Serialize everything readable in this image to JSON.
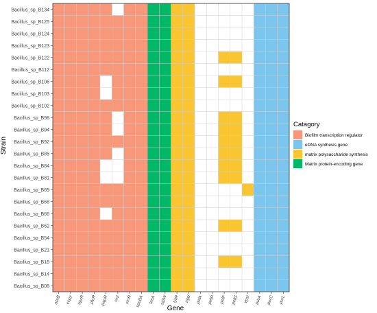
{
  "chart_data": {
    "type": "heatmap",
    "xlabel": "Gene",
    "ylabel": "Strain",
    "grid": true,
    "legend_placement": "right",
    "legend": {
      "title": "Catagory",
      "entries": [
        {
          "key": "biofilm",
          "label": "Biofilm transcription regulator",
          "color": "#F8987A"
        },
        {
          "key": "edna",
          "label": "eDNA synthesis gene",
          "color": "#7CC6EE"
        },
        {
          "key": "matrix_ps",
          "label": "matrix polysaccharide synthesis",
          "color": "#F9C531"
        },
        {
          "key": "matrix_protein",
          "label": "Matrix protein-encoding gene",
          "color": "#00B867"
        }
      ]
    },
    "genes": [
      {
        "name": "abrB",
        "category": "biofilm"
      },
      {
        "name": "ccpy",
        "category": "biofilm"
      },
      {
        "name": "hprR",
        "category": "biofilm"
      },
      {
        "name": "plcR",
        "category": "biofilm"
      },
      {
        "name": "papR",
        "category": "biofilm"
      },
      {
        "name": "sinI",
        "category": "biofilm"
      },
      {
        "name": "sinR",
        "category": "biofilm"
      },
      {
        "name": "spo0A",
        "category": "biofilm"
      },
      {
        "name": "tasA",
        "category": "matrix_protein"
      },
      {
        "name": "sipW",
        "category": "matrix_protein"
      },
      {
        "name": "lytR",
        "category": "matrix_ps"
      },
      {
        "name": "ugd",
        "category": "matrix_ps"
      },
      {
        "name": "pelA",
        "category": "matrix_ps"
      },
      {
        "name": "pelD",
        "category": "matrix_ps"
      },
      {
        "name": "pelF",
        "category": "matrix_ps"
      },
      {
        "name": "pelG",
        "category": "matrix_ps"
      },
      {
        "name": "vpsI",
        "category": "matrix_ps"
      },
      {
        "name": "purA",
        "category": "edna"
      },
      {
        "name": "purC",
        "category": "edna"
      },
      {
        "name": "purL",
        "category": "edna"
      }
    ],
    "strains": [
      {
        "name": "Bacillus_sp_B134",
        "present": [
          1,
          1,
          1,
          1,
          1,
          0,
          1,
          1,
          1,
          1,
          1,
          1,
          0,
          0,
          0,
          0,
          0,
          1,
          1,
          1
        ]
      },
      {
        "name": "Bacillus_sp_B125",
        "present": [
          1,
          1,
          1,
          1,
          1,
          1,
          1,
          1,
          1,
          1,
          1,
          1,
          0,
          0,
          0,
          0,
          0,
          1,
          1,
          1
        ]
      },
      {
        "name": "Bacillus_sp_B124",
        "present": [
          1,
          1,
          1,
          1,
          1,
          1,
          1,
          1,
          1,
          1,
          1,
          1,
          0,
          0,
          0,
          0,
          0,
          1,
          1,
          1
        ]
      },
      {
        "name": "Bacillus_sp_B123",
        "present": [
          1,
          1,
          1,
          1,
          1,
          1,
          1,
          1,
          1,
          1,
          1,
          1,
          0,
          0,
          0,
          0,
          0,
          1,
          1,
          1
        ]
      },
      {
        "name": "Bacillus_sp_B122",
        "present": [
          1,
          1,
          1,
          1,
          1,
          1,
          1,
          1,
          1,
          1,
          1,
          1,
          0,
          0,
          1,
          1,
          0,
          1,
          1,
          1
        ]
      },
      {
        "name": "Bacillus_sp_B112",
        "present": [
          1,
          1,
          1,
          1,
          1,
          1,
          1,
          1,
          1,
          1,
          1,
          1,
          0,
          0,
          0,
          0,
          0,
          1,
          1,
          1
        ]
      },
      {
        "name": "Bacillus_sp_B106",
        "present": [
          1,
          1,
          1,
          1,
          0,
          1,
          1,
          1,
          1,
          1,
          1,
          1,
          0,
          0,
          1,
          1,
          0,
          1,
          1,
          1
        ]
      },
      {
        "name": "Bacillus_sp_B103",
        "present": [
          1,
          1,
          1,
          1,
          0,
          1,
          1,
          1,
          1,
          1,
          1,
          1,
          0,
          0,
          0,
          0,
          0,
          1,
          1,
          1
        ]
      },
      {
        "name": "Bacillus_sp_B102",
        "present": [
          1,
          1,
          1,
          1,
          1,
          1,
          1,
          1,
          1,
          1,
          1,
          1,
          0,
          0,
          0,
          0,
          0,
          1,
          1,
          1
        ]
      },
      {
        "name": "Bacillus_sp_B98",
        "present": [
          1,
          1,
          1,
          1,
          1,
          0,
          1,
          1,
          1,
          1,
          1,
          1,
          0,
          0,
          1,
          1,
          0,
          1,
          1,
          1
        ]
      },
      {
        "name": "Bacillus_sp_B94",
        "present": [
          1,
          1,
          1,
          1,
          1,
          0,
          1,
          1,
          1,
          1,
          1,
          1,
          0,
          0,
          1,
          1,
          0,
          1,
          1,
          1
        ]
      },
      {
        "name": "Bacillus_sp_B92",
        "present": [
          1,
          1,
          1,
          1,
          1,
          1,
          1,
          1,
          1,
          1,
          1,
          1,
          0,
          0,
          1,
          1,
          0,
          1,
          1,
          1
        ]
      },
      {
        "name": "Bacillus_sp_B85",
        "present": [
          1,
          1,
          1,
          1,
          1,
          0,
          1,
          1,
          1,
          1,
          1,
          1,
          0,
          0,
          1,
          1,
          0,
          1,
          1,
          1
        ]
      },
      {
        "name": "Bacillus_sp_B84",
        "present": [
          1,
          1,
          1,
          1,
          0,
          0,
          1,
          1,
          1,
          1,
          1,
          1,
          0,
          0,
          1,
          1,
          0,
          1,
          1,
          1
        ]
      },
      {
        "name": "Bacillus_sp_B81",
        "present": [
          1,
          1,
          1,
          1,
          0,
          0,
          1,
          1,
          1,
          1,
          1,
          1,
          0,
          0,
          1,
          1,
          0,
          1,
          1,
          1
        ]
      },
      {
        "name": "Bacillus_sp_B69",
        "present": [
          1,
          1,
          1,
          1,
          1,
          1,
          1,
          1,
          1,
          1,
          1,
          1,
          0,
          0,
          0,
          0,
          1,
          1,
          1,
          1
        ]
      },
      {
        "name": "Bacillus_sp_B68",
        "present": [
          1,
          1,
          1,
          1,
          1,
          1,
          1,
          1,
          1,
          1,
          1,
          1,
          0,
          0,
          0,
          0,
          0,
          1,
          1,
          1
        ]
      },
      {
        "name": "Bacillus_sp_B66",
        "present": [
          1,
          1,
          1,
          1,
          0,
          1,
          1,
          1,
          1,
          1,
          1,
          1,
          0,
          0,
          0,
          0,
          0,
          1,
          1,
          1
        ]
      },
      {
        "name": "Bacillus_sp_B62",
        "present": [
          1,
          1,
          1,
          1,
          1,
          1,
          1,
          1,
          1,
          1,
          1,
          1,
          0,
          0,
          1,
          1,
          0,
          1,
          1,
          1
        ]
      },
      {
        "name": "Bacillus_sp_B54",
        "present": [
          1,
          1,
          1,
          1,
          1,
          1,
          1,
          1,
          1,
          1,
          1,
          1,
          0,
          0,
          0,
          0,
          0,
          1,
          1,
          1
        ]
      },
      {
        "name": "Bacillus_sp_B21",
        "present": [
          1,
          1,
          1,
          1,
          1,
          1,
          1,
          1,
          1,
          1,
          1,
          1,
          0,
          0,
          0,
          0,
          0,
          1,
          1,
          1
        ]
      },
      {
        "name": "Bacillus_sp_B18",
        "present": [
          1,
          1,
          1,
          1,
          1,
          1,
          1,
          1,
          1,
          1,
          1,
          1,
          0,
          0,
          1,
          1,
          0,
          1,
          1,
          1
        ]
      },
      {
        "name": "Bacillus_sp_B14",
        "present": [
          1,
          1,
          1,
          1,
          1,
          1,
          1,
          1,
          1,
          1,
          1,
          1,
          0,
          0,
          0,
          0,
          0,
          1,
          1,
          1
        ]
      },
      {
        "name": "Bacillus_sp_B08",
        "present": [
          1,
          1,
          1,
          1,
          1,
          1,
          1,
          1,
          1,
          1,
          1,
          1,
          0,
          0,
          0,
          0,
          0,
          1,
          1,
          1
        ]
      }
    ]
  }
}
